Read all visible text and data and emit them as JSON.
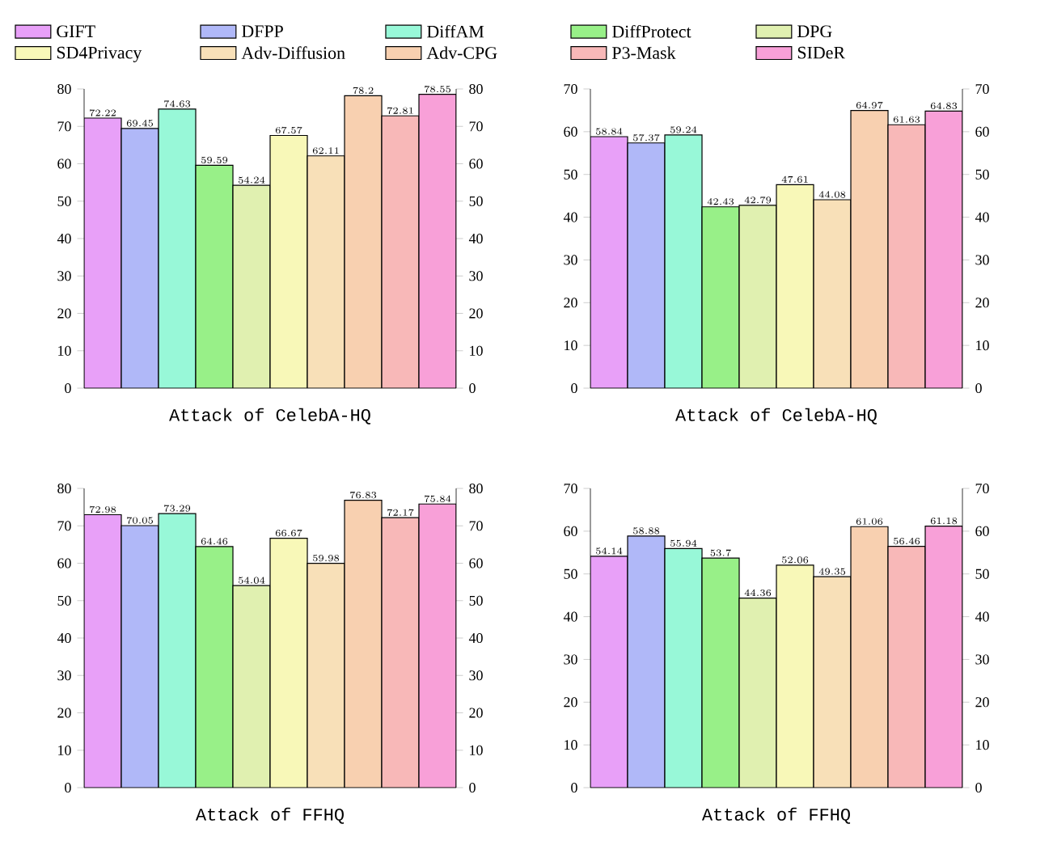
{
  "chart_data": [
    {
      "type": "bar",
      "title": "Attack of CelebA-HQ",
      "categories": [
        null
      ],
      "ylim": [
        0,
        80
      ],
      "yticks": [
        0,
        10,
        20,
        30,
        40,
        50,
        60,
        70,
        80
      ],
      "y2lim": [
        0,
        80
      ],
      "y2ticks": [
        0,
        10,
        20,
        30,
        40,
        50,
        60,
        70,
        80
      ],
      "data_labels": true,
      "legend": "top",
      "series": [
        {
          "name": "GIFT",
          "color": "#e8a0f8",
          "values": [
            72.22
          ]
        },
        {
          "name": "DFPP",
          "color": "#b0b8f8",
          "values": [
            69.45
          ]
        },
        {
          "name": "DiffAM",
          "color": "#98f8d8",
          "values": [
            74.63
          ]
        },
        {
          "name": "DiffProtect",
          "color": "#98f088",
          "values": [
            59.59
          ]
        },
        {
          "name": "DPG",
          "color": "#e0f0b0",
          "values": [
            54.24
          ]
        },
        {
          "name": "SD4Privacy",
          "color": "#f8f8b8",
          "values": [
            67.57
          ]
        },
        {
          "name": "Adv-Diffusion",
          "color": "#f8e0b8",
          "values": [
            62.11
          ]
        },
        {
          "name": "Adv-CPG",
          "color": "#f8d0b0",
          "values": [
            78.2
          ]
        },
        {
          "name": "P3-Mask",
          "color": "#f8b8b8",
          "values": [
            72.81
          ]
        },
        {
          "name": "SIDeR",
          "color": "#f8a0d8",
          "values": [
            78.55
          ]
        }
      ]
    },
    {
      "type": "bar",
      "title": "Attack of CelebA-HQ",
      "categories": [
        null
      ],
      "ylim": [
        0,
        70
      ],
      "yticks": [
        0,
        10,
        20,
        30,
        40,
        50,
        60,
        70
      ],
      "y2lim": [
        0,
        70
      ],
      "y2ticks": [
        0,
        10,
        20,
        30,
        40,
        50,
        60,
        70
      ],
      "data_labels": true,
      "series": [
        {
          "color": "#e8a0f8",
          "values": [
            58.84
          ]
        },
        {
          "color": "#b0b8f8",
          "values": [
            57.37
          ]
        },
        {
          "color": "#98f8d8",
          "values": [
            59.24
          ]
        },
        {
          "color": "#98f088",
          "values": [
            42.43
          ]
        },
        {
          "color": "#e0f0b0",
          "values": [
            42.79
          ]
        },
        {
          "color": "#f8f8b8",
          "values": [
            47.61
          ]
        },
        {
          "color": "#f8e0b8",
          "values": [
            44.08
          ]
        },
        {
          "color": "#f8d0b0",
          "values": [
            64.97
          ]
        },
        {
          "color": "#f8b8b8",
          "values": [
            61.63
          ]
        },
        {
          "color": "#f8a0d8",
          "values": [
            64.83
          ]
        }
      ]
    },
    {
      "type": "bar",
      "title": "Attack of FFHQ",
      "categories": [
        null
      ],
      "ylim": [
        0,
        80
      ],
      "yticks": [
        0,
        10,
        20,
        30,
        40,
        50,
        60,
        70,
        80
      ],
      "y2lim": [
        0,
        80
      ],
      "y2ticks": [
        0,
        10,
        20,
        30,
        40,
        50,
        60,
        70,
        80
      ],
      "data_labels": true,
      "series": [
        {
          "color": "#e8a0f8",
          "values": [
            72.98
          ]
        },
        {
          "color": "#b0b8f8",
          "values": [
            70.05
          ]
        },
        {
          "color": "#98f8d8",
          "values": [
            73.29
          ]
        },
        {
          "color": "#98f088",
          "values": [
            64.46
          ]
        },
        {
          "color": "#e0f0b0",
          "values": [
            54.04
          ]
        },
        {
          "color": "#f8f8b8",
          "values": [
            66.67
          ]
        },
        {
          "color": "#f8e0b8",
          "values": [
            59.98
          ]
        },
        {
          "color": "#f8d0b0",
          "values": [
            76.83
          ]
        },
        {
          "color": "#f8b8b8",
          "values": [
            72.17
          ]
        },
        {
          "color": "#f8a0d8",
          "values": [
            75.84
          ]
        }
      ]
    },
    {
      "type": "bar",
      "title": "Attack of FFHQ",
      "categories": [
        null
      ],
      "ylim": [
        0,
        70
      ],
      "yticks": [
        0,
        10,
        20,
        30,
        40,
        50,
        60,
        70
      ],
      "y2lim": [
        0,
        70
      ],
      "y2ticks": [
        0,
        10,
        20,
        30,
        40,
        50,
        60,
        70
      ],
      "data_labels": true,
      "series": [
        {
          "color": "#e8a0f8",
          "values": [
            54.14
          ]
        },
        {
          "color": "#b0b8f8",
          "values": [
            58.88
          ]
        },
        {
          "color": "#98f8d8",
          "values": [
            55.94
          ]
        },
        {
          "color": "#98f088",
          "values": [
            53.7
          ]
        },
        {
          "color": "#e0f0b0",
          "values": [
            44.36
          ]
        },
        {
          "color": "#f8f8b8",
          "values": [
            52.06
          ]
        },
        {
          "color": "#f8e0b8",
          "values": [
            49.35
          ]
        },
        {
          "color": "#f8d0b0",
          "values": [
            61.06
          ]
        },
        {
          "color": "#f8b8b8",
          "values": [
            56.46
          ]
        },
        {
          "color": "#f8a0d8",
          "values": [
            61.18
          ]
        }
      ]
    }
  ]
}
